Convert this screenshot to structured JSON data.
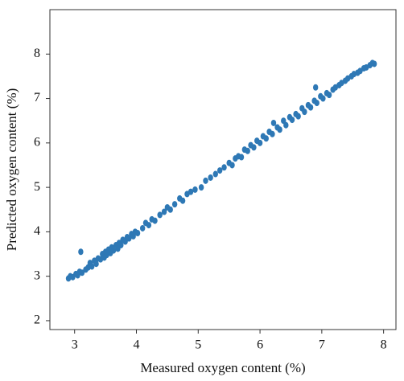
{
  "chart_data": {
    "type": "scatter",
    "x_label": "Measured oxygen content (%)",
    "y_label": "Predicted oxygen content (%)",
    "color": "#2e78b5",
    "xlim": [
      2.6,
      8.2
    ],
    "ylim": [
      1.8,
      9.0
    ],
    "xticks": [
      3,
      4,
      5,
      6,
      7,
      8
    ],
    "yticks": [
      2,
      3,
      4,
      5,
      6,
      7,
      8
    ],
    "x": [
      2.9,
      2.93,
      2.97,
      3.02,
      3.05,
      3.08,
      3.1,
      3.12,
      3.18,
      3.22,
      3.25,
      3.28,
      3.32,
      3.35,
      3.38,
      3.42,
      3.45,
      3.48,
      3.5,
      3.52,
      3.55,
      3.58,
      3.6,
      3.63,
      3.67,
      3.7,
      3.72,
      3.75,
      3.78,
      3.82,
      3.85,
      3.88,
      3.92,
      3.95,
      3.98,
      4.02,
      4.1,
      4.15,
      4.2,
      4.25,
      4.3,
      4.38,
      4.45,
      4.5,
      4.55,
      4.62,
      4.7,
      4.75,
      4.82,
      4.88,
      4.95,
      5.05,
      5.12,
      5.2,
      5.28,
      5.35,
      5.42,
      5.5,
      5.55,
      5.6,
      5.65,
      5.7,
      5.75,
      5.8,
      5.85,
      5.9,
      5.95,
      6.0,
      6.05,
      6.1,
      6.15,
      6.2,
      6.22,
      6.28,
      6.32,
      6.38,
      6.42,
      6.48,
      6.52,
      6.58,
      6.62,
      6.68,
      6.72,
      6.78,
      6.82,
      6.88,
      6.9,
      6.92,
      6.98,
      7.02,
      7.08,
      7.12,
      7.18,
      7.22,
      7.28,
      7.32,
      7.38,
      7.42,
      7.48,
      7.52,
      7.58,
      7.62,
      7.68,
      7.72,
      7.78,
      7.82,
      7.85
    ],
    "values": [
      2.95,
      3.0,
      2.98,
      3.05,
      3.02,
      3.1,
      3.55,
      3.08,
      3.15,
      3.2,
      3.3,
      3.22,
      3.35,
      3.28,
      3.4,
      3.38,
      3.5,
      3.42,
      3.55,
      3.48,
      3.6,
      3.52,
      3.65,
      3.58,
      3.7,
      3.62,
      3.75,
      3.7,
      3.82,
      3.78,
      3.88,
      3.85,
      3.95,
      3.9,
      4.0,
      3.97,
      4.08,
      4.2,
      4.15,
      4.28,
      4.25,
      4.38,
      4.45,
      4.55,
      4.5,
      4.62,
      4.75,
      4.7,
      4.85,
      4.9,
      4.95,
      5.0,
      5.15,
      5.22,
      5.3,
      5.38,
      5.45,
      5.55,
      5.5,
      5.65,
      5.7,
      5.68,
      5.85,
      5.82,
      5.95,
      5.9,
      6.05,
      6.0,
      6.15,
      6.1,
      6.25,
      6.2,
      6.45,
      6.35,
      6.3,
      6.5,
      6.4,
      6.58,
      6.52,
      6.65,
      6.6,
      6.78,
      6.7,
      6.85,
      6.8,
      6.95,
      7.25,
      6.9,
      7.05,
      7.0,
      7.12,
      7.08,
      7.2,
      7.25,
      7.3,
      7.35,
      7.4,
      7.45,
      7.5,
      7.55,
      7.58,
      7.62,
      7.68,
      7.7,
      7.75,
      7.8,
      7.78
    ]
  }
}
